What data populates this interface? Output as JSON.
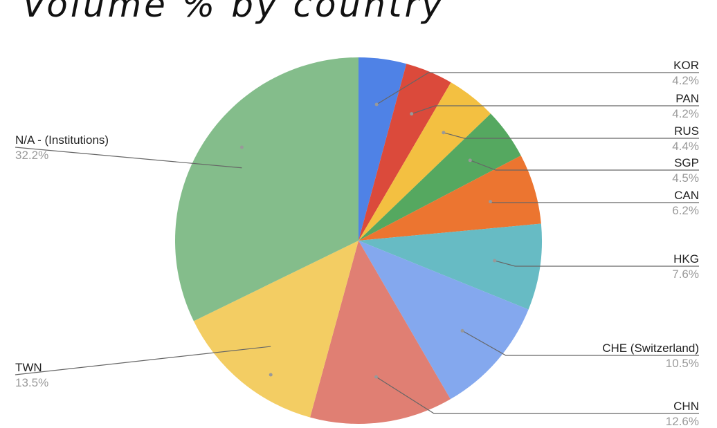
{
  "chart_data": {
    "type": "pie",
    "title": "Volume % by country",
    "start_angle": "12 o'clock, clockwise",
    "slices": [
      {
        "label": "KOR",
        "value": 4.2,
        "display": "4.2%",
        "color": "#4f82e6"
      },
      {
        "label": "PAN",
        "value": 4.2,
        "display": "4.2%",
        "color": "#db4a3b"
      },
      {
        "label": "RUS",
        "value": 4.4,
        "display": "4.4%",
        "color": "#f3c041"
      },
      {
        "label": "SGP",
        "value": 4.5,
        "display": "4.5%",
        "color": "#55a860"
      },
      {
        "label": "CAN",
        "value": 6.2,
        "display": "6.2%",
        "color": "#ec7530"
      },
      {
        "label": "HKG",
        "value": 7.6,
        "display": "7.6%",
        "color": "#67bbc4"
      },
      {
        "label": "CHE (Switzerland)",
        "value": 10.5,
        "display": "10.5%",
        "color": "#84a8ee"
      },
      {
        "label": "CHN",
        "value": 12.6,
        "display": "12.6%",
        "color": "#e07f73"
      },
      {
        "label": "TWN",
        "value": 13.5,
        "display": "13.5%",
        "color": "#f3cd63"
      },
      {
        "label": "N/A - (Institutions)",
        "value": 32.2,
        "display": "32.2%",
        "color": "#84bd8b"
      }
    ]
  }
}
